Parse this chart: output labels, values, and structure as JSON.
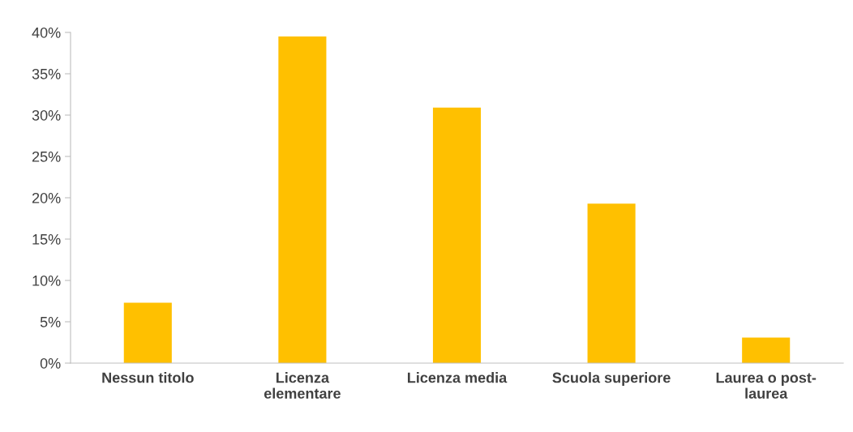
{
  "chart_data": {
    "type": "bar",
    "categories": [
      "Nessun titolo",
      "Licenza\nelementare",
      "Licenza media",
      "Scuola superiore",
      "Laurea o post-\nlaurea"
    ],
    "values": [
      7.3,
      39.5,
      30.9,
      19.3,
      3.1
    ],
    "color": "#ffc000",
    "ylim": [
      0,
      40
    ],
    "yticks": [
      {
        "value": 0,
        "label": "0%"
      },
      {
        "value": 5,
        "label": "5%"
      },
      {
        "value": 10,
        "label": "10%"
      },
      {
        "value": 15,
        "label": "15%"
      },
      {
        "value": 20,
        "label": "20%"
      },
      {
        "value": 25,
        "label": "25%"
      },
      {
        "value": 30,
        "label": "30%"
      },
      {
        "value": 35,
        "label": "35%"
      },
      {
        "value": 40,
        "label": "40%"
      }
    ],
    "grid": false,
    "legend": false
  }
}
